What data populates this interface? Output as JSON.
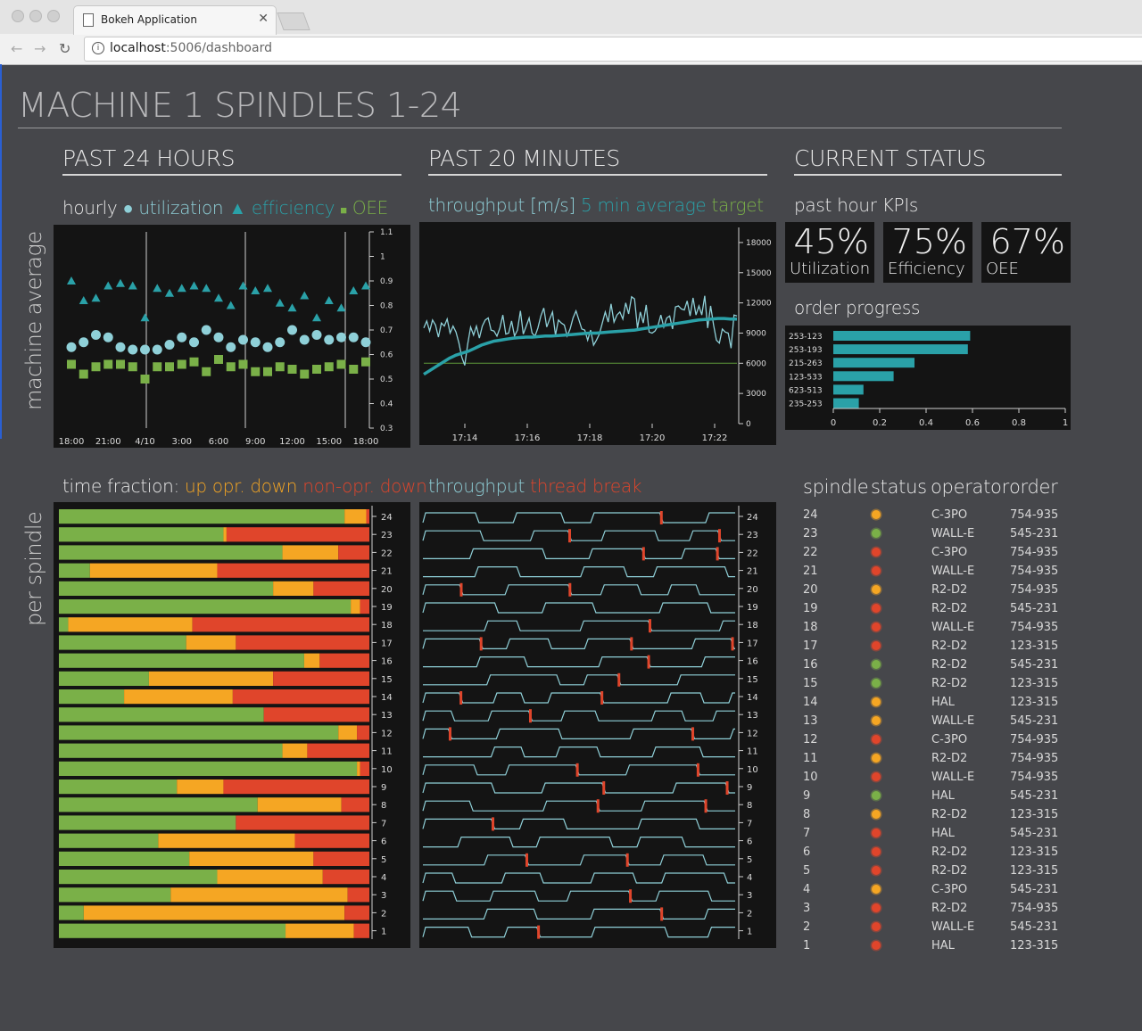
{
  "browser": {
    "tab_title": "Bokeh Application",
    "url_host": "localhost",
    "url_path": ":5006/dashboard"
  },
  "page": {
    "title": "MACHINE 1 SPINDLES 1-24"
  },
  "sections": {
    "past24": "PAST 24 HOURS",
    "past20": "PAST 20 MINUTES",
    "current": "CURRENT STATUS"
  },
  "row_labels": {
    "machine": "machine average",
    "spindle": "per spindle"
  },
  "legends": {
    "hourly": {
      "prefix": "hourly",
      "utilization": "utilization",
      "efficiency": "efficiency",
      "oee": "OEE"
    },
    "throughput": {
      "prefix": "throughput [m/s]",
      "avg": "5 min average",
      "target": "target"
    },
    "time_fraction": {
      "prefix": "time fraction:",
      "up": "up",
      "opr": "opr. down",
      "nonopr": "non-opr. down"
    },
    "thread": {
      "prefix": "throughput",
      "brk": "thread break"
    }
  },
  "colors": {
    "up": "#7ab048",
    "opr": "#f5a623",
    "nonopr": "#e0452b",
    "teal": "#2aa1a8",
    "light_teal": "#8fd0d8",
    "target": "#5e9a3a",
    "status_green": "#7ab048",
    "status_orange": "#f5a623",
    "status_red": "#e0452b"
  },
  "kpis": [
    {
      "value": "45%",
      "label": "Utilization"
    },
    {
      "value": "75%",
      "label": "Efficiency"
    },
    {
      "value": "67%",
      "label": "OEE"
    }
  ],
  "kpi_heading": "past hour KPIs",
  "order_heading": "order progress",
  "table": {
    "headers": [
      "spindle",
      "status",
      "operator",
      "order"
    ],
    "rows": [
      {
        "spindle": "24",
        "status": "orange",
        "operator": "C-3PO",
        "order": "754-935"
      },
      {
        "spindle": "23",
        "status": "green",
        "operator": "WALL-E",
        "order": "545-231"
      },
      {
        "spindle": "22",
        "status": "red",
        "operator": "C-3PO",
        "order": "754-935"
      },
      {
        "spindle": "21",
        "status": "red",
        "operator": "WALL-E",
        "order": "754-935"
      },
      {
        "spindle": "20",
        "status": "orange",
        "operator": "R2-D2",
        "order": "754-935"
      },
      {
        "spindle": "19",
        "status": "red",
        "operator": "R2-D2",
        "order": "545-231"
      },
      {
        "spindle": "18",
        "status": "red",
        "operator": "WALL-E",
        "order": "754-935"
      },
      {
        "spindle": "17",
        "status": "red",
        "operator": "R2-D2",
        "order": "123-315"
      },
      {
        "spindle": "16",
        "status": "green",
        "operator": "R2-D2",
        "order": "545-231"
      },
      {
        "spindle": "15",
        "status": "green",
        "operator": "R2-D2",
        "order": "123-315"
      },
      {
        "spindle": "14",
        "status": "orange",
        "operator": "HAL",
        "order": "123-315"
      },
      {
        "spindle": "13",
        "status": "orange",
        "operator": "WALL-E",
        "order": "545-231"
      },
      {
        "spindle": "12",
        "status": "red",
        "operator": "C-3PO",
        "order": "754-935"
      },
      {
        "spindle": "11",
        "status": "orange",
        "operator": "R2-D2",
        "order": "754-935"
      },
      {
        "spindle": "10",
        "status": "red",
        "operator": "WALL-E",
        "order": "754-935"
      },
      {
        "spindle": "9",
        "status": "green",
        "operator": "HAL",
        "order": "545-231"
      },
      {
        "spindle": "8",
        "status": "orange",
        "operator": "R2-D2",
        "order": "123-315"
      },
      {
        "spindle": "7",
        "status": "red",
        "operator": "HAL",
        "order": "545-231"
      },
      {
        "spindle": "6",
        "status": "red",
        "operator": "R2-D2",
        "order": "123-315"
      },
      {
        "spindle": "5",
        "status": "red",
        "operator": "R2-D2",
        "order": "123-315"
      },
      {
        "spindle": "4",
        "status": "orange",
        "operator": "C-3PO",
        "order": "545-231"
      },
      {
        "spindle": "3",
        "status": "red",
        "operator": "R2-D2",
        "order": "754-935"
      },
      {
        "spindle": "2",
        "status": "red",
        "operator": "WALL-E",
        "order": "545-231"
      },
      {
        "spindle": "1",
        "status": "red",
        "operator": "HAL",
        "order": "123-315"
      }
    ]
  },
  "chart_data": [
    {
      "id": "hourly",
      "type": "scatter",
      "x": [
        "18:00",
        "19:00",
        "20:00",
        "21:00",
        "22:00",
        "23:00",
        "0:00",
        "1:00",
        "2:00",
        "3:00",
        "4:00",
        "5:00",
        "6:00",
        "7:00",
        "8:00",
        "9:00",
        "10:00",
        "11:00",
        "12:00",
        "13:00",
        "14:00",
        "15:00",
        "16:00",
        "17:00",
        "18:00"
      ],
      "xticks": [
        "18:00",
        "21:00",
        "4/10",
        "3:00",
        "6:00",
        "9:00",
        "12:00",
        "15:00",
        "18:00"
      ],
      "ylim": [
        0.3,
        1.1
      ],
      "yticks": [
        "0.3",
        "0.4",
        "0.5",
        "0.6",
        "0.7",
        "0.8",
        "0.9",
        "1",
        "1.1"
      ],
      "series": [
        {
          "name": "utilization",
          "values": [
            0.63,
            0.65,
            0.68,
            0.67,
            0.63,
            0.62,
            0.62,
            0.62,
            0.64,
            0.67,
            0.65,
            0.7,
            0.67,
            0.63,
            0.66,
            0.65,
            0.63,
            0.65,
            0.7,
            0.66,
            0.68,
            0.66,
            0.67,
            0.67,
            0.65
          ]
        },
        {
          "name": "efficiency",
          "values": [
            0.9,
            0.82,
            0.83,
            0.88,
            0.89,
            0.88,
            0.75,
            0.87,
            0.85,
            0.87,
            0.88,
            0.87,
            0.83,
            0.8,
            0.88,
            0.86,
            0.87,
            0.81,
            0.79,
            0.84,
            0.75,
            0.82,
            0.79,
            0.86,
            0.88
          ]
        },
        {
          "name": "OEE",
          "values": [
            0.56,
            0.52,
            0.55,
            0.56,
            0.56,
            0.55,
            0.5,
            0.55,
            0.55,
            0.56,
            0.57,
            0.53,
            0.58,
            0.55,
            0.56,
            0.53,
            0.53,
            0.55,
            0.54,
            0.52,
            0.54,
            0.55,
            0.56,
            0.54,
            0.57
          ]
        }
      ]
    },
    {
      "id": "throughput",
      "type": "line",
      "xticks": [
        "17:14",
        "17:16",
        "17:18",
        "17:20",
        "17:22"
      ],
      "ylim": [
        0,
        19500
      ],
      "yticks": [
        "0",
        "3000",
        "6000",
        "9000",
        "12000",
        "15000",
        "18000"
      ],
      "target": 6000,
      "raw": [
        9500,
        10200,
        9200,
        10300,
        9800,
        8600,
        10000,
        9700,
        10400,
        9000,
        9700,
        9100,
        8000,
        6600,
        5800,
        7900,
        9600,
        8800,
        9700,
        8500,
        9700,
        10300,
        10500,
        9300,
        9200,
        8700,
        9500,
        10800,
        8900,
        9000,
        10200,
        8700,
        9300,
        11200,
        8900,
        9700,
        10500,
        9000,
        8700,
        9500,
        10700,
        11500,
        9600,
        10400,
        11100,
        8800,
        10300,
        10000,
        9800,
        8700,
        9400,
        10500,
        11200,
        10300,
        9400,
        9300,
        8300,
        9300,
        7800,
        8300,
        8900,
        10000,
        11100,
        10100,
        11900,
        10100,
        10800,
        11100,
        10400,
        12000,
        10900,
        12600,
        12400,
        9500,
        11100,
        10000,
        11800,
        9100,
        9000,
        9200,
        9700,
        10800,
        9600,
        10500,
        10700,
        9400,
        11600,
        11700,
        11400,
        11300,
        12200,
        10700,
        12500,
        10800,
        11700,
        10800,
        12700,
        9500,
        11700,
        9800,
        8300,
        8000,
        9400,
        9100,
        9000,
        7500,
        10800,
        10700
      ],
      "avg": [
        4900,
        5300,
        5700,
        6100,
        6500,
        6800,
        7000,
        7200,
        7500,
        7800,
        8000,
        8200,
        8300,
        8400,
        8500,
        8550,
        8600,
        8600,
        8650,
        8700,
        8700,
        8750,
        8800,
        8850,
        8900,
        8950,
        9000,
        9000,
        9050,
        9100,
        9150,
        9200,
        9250,
        9300,
        9400,
        9500,
        9600,
        9700,
        9800,
        9900,
        10000,
        10100,
        10200,
        10300,
        10350,
        10400,
        10450,
        10450,
        10400,
        10400
      ]
    },
    {
      "id": "order_progress",
      "type": "bar",
      "categories": [
        "253-123",
        "253-193",
        "215-263",
        "123-533",
        "623-513",
        "235-253"
      ],
      "values": [
        0.59,
        0.58,
        0.35,
        0.26,
        0.13,
        0.11
      ],
      "xlim": [
        0,
        1
      ],
      "xticks": [
        "0",
        "0.2",
        "0.4",
        "0.6",
        "0.8",
        "1"
      ]
    },
    {
      "id": "time_fraction",
      "type": "bar",
      "stacked": true,
      "categories": [
        "24",
        "23",
        "22",
        "21",
        "20",
        "19",
        "18",
        "17",
        "16",
        "15",
        "14",
        "13",
        "12",
        "11",
        "10",
        "9",
        "8",
        "7",
        "6",
        "5",
        "4",
        "3",
        "2",
        "1"
      ],
      "series": [
        {
          "name": "up",
          "values": [
            0.92,
            0.53,
            0.72,
            0.1,
            0.69,
            0.94,
            0.03,
            0.41,
            0.79,
            0.29,
            0.21,
            0.66,
            0.9,
            0.72,
            0.96,
            0.38,
            0.64,
            0.57,
            0.32,
            0.42,
            0.51,
            0.36,
            0.08,
            0.73
          ]
        },
        {
          "name": "opr. down",
          "values": [
            0.07,
            0.01,
            0.18,
            0.41,
            0.13,
            0.03,
            0.4,
            0.16,
            0.05,
            0.4,
            0.35,
            0.0,
            0.06,
            0.08,
            0.01,
            0.15,
            0.27,
            0.0,
            0.44,
            0.4,
            0.34,
            0.57,
            0.84,
            0.22
          ]
        },
        {
          "name": "non-opr. down",
          "values": [
            0.01,
            0.46,
            0.1,
            0.49,
            0.18,
            0.03,
            0.57,
            0.43,
            0.16,
            0.31,
            0.44,
            0.34,
            0.04,
            0.2,
            0.03,
            0.47,
            0.09,
            0.43,
            0.24,
            0.18,
            0.15,
            0.07,
            0.08,
            0.05
          ]
        }
      ]
    },
    {
      "id": "thread_break",
      "type": "line",
      "categories": [
        "24",
        "23",
        "22",
        "21",
        "20",
        "19",
        "18",
        "17",
        "16",
        "15",
        "14",
        "13",
        "12",
        "11",
        "10",
        "9",
        "8",
        "7",
        "6",
        "5",
        "4",
        "3",
        "2",
        "1"
      ]
    }
  ]
}
